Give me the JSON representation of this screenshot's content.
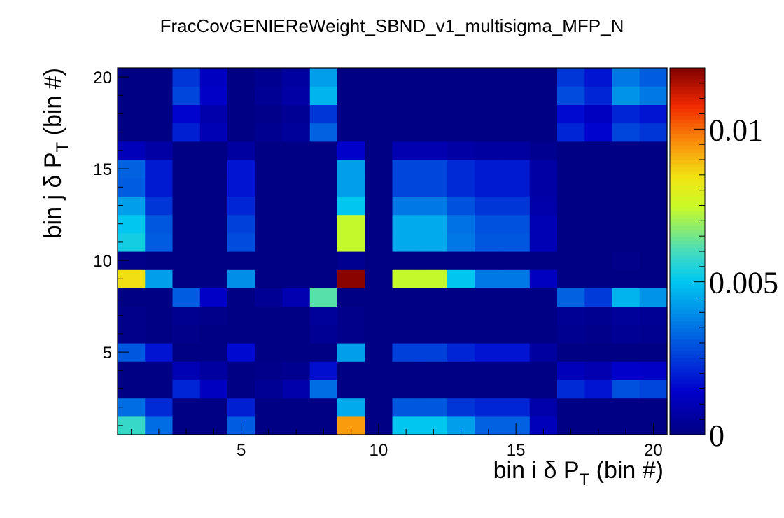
{
  "chart_data": {
    "type": "heatmap",
    "title": "FracCovGENIEReWeight_SBND_v1_multisigma_MFP_N",
    "xlabel": {
      "main": "bin i  δ P",
      "sub": "T",
      "tail": " (bin #)"
    },
    "ylabel": {
      "main": "bin j  δ P",
      "sub": "T",
      "tail": " (bin #)"
    },
    "x_range": [
      0.5,
      20.5
    ],
    "y_range": [
      0.5,
      20.5
    ],
    "x_ticks": [
      5,
      10,
      15,
      20
    ],
    "y_ticks": [
      5,
      10,
      15,
      20
    ],
    "x_tick_labels": [
      "5",
      "10",
      "15",
      "20"
    ],
    "y_tick_labels": [
      "5",
      "10",
      "15",
      "20"
    ],
    "z_range": [
      0,
      0.012
    ],
    "z_ticks": [
      0,
      0.005,
      0.01
    ],
    "z_tick_labels": [
      "0",
      "0.005",
      "0.01"
    ],
    "colormap": "jet",
    "values": [
      [
        0.0058,
        0.0034,
        0.0001,
        0.0001,
        0.0031,
        0.0001,
        0.0001,
        0.0001,
        0.0094,
        0.0001,
        0.005,
        0.005,
        0.0043,
        0.0032,
        0.0032,
        0.0011,
        0.0001,
        0.0001,
        0.0001,
        0.0001
      ],
      [
        0.0034,
        0.0022,
        0.0001,
        0.0001,
        0.002,
        0.0001,
        0.0001,
        0.0001,
        0.0045,
        0.0001,
        0.003,
        0.003,
        0.0024,
        0.0021,
        0.0021,
        0.0008,
        0.0001,
        0.0001,
        0.0001,
        0.0001
      ],
      [
        0.0001,
        0.0001,
        0.0021,
        0.0012,
        0.0001,
        0.0004,
        0.0008,
        0.0034,
        0.0001,
        0.0001,
        0.0001,
        0.0001,
        0.0001,
        0.0001,
        0.0001,
        0.0001,
        0.0022,
        0.0018,
        0.0029,
        0.0027
      ],
      [
        0.0001,
        0.0001,
        0.001,
        0.0006,
        0.0001,
        0.0002,
        0.0003,
        0.0017,
        0.0001,
        0.0001,
        0.0001,
        0.0001,
        0.0001,
        0.0001,
        0.0001,
        0.0001,
        0.0011,
        0.0009,
        0.0014,
        0.0013
      ],
      [
        0.003,
        0.0018,
        0.0001,
        0.0001,
        0.0016,
        0.0001,
        0.0001,
        0.0001,
        0.0043,
        0.0001,
        0.0026,
        0.0026,
        0.0021,
        0.0018,
        0.0018,
        0.0006,
        0.0001,
        0.0001,
        0.0001,
        0.0001
      ],
      [
        0.0002,
        0.0001,
        0.0002,
        0.0001,
        0.0001,
        0.0001,
        0.0001,
        0.0004,
        0.0002,
        0.0001,
        0.0001,
        0.0001,
        0.0001,
        0.0001,
        0.0001,
        0.0001,
        0.0003,
        0.0002,
        0.0004,
        0.0003
      ],
      [
        0.0002,
        0.0001,
        0.0003,
        0.0002,
        0.0001,
        0.0001,
        0.0001,
        0.0005,
        0.0002,
        0.0001,
        0.0001,
        0.0001,
        0.0001,
        0.0001,
        0.0001,
        0.0001,
        0.0004,
        0.0003,
        0.0005,
        0.0004
      ],
      [
        0.0001,
        0.0001,
        0.0031,
        0.0013,
        0.0001,
        0.0004,
        0.0009,
        0.0062,
        0.0001,
        0.0001,
        0.0001,
        0.0001,
        0.0001,
        0.0001,
        0.0001,
        0.0001,
        0.0032,
        0.0025,
        0.0047,
        0.0041
      ],
      [
        0.0085,
        0.0043,
        0.0001,
        0.0001,
        0.004,
        0.0001,
        0.0001,
        0.0001,
        0.0119,
        0.0001,
        0.0074,
        0.0074,
        0.005,
        0.0036,
        0.0036,
        0.0012,
        0.0001,
        0.0001,
        0.0001,
        0.0001
      ],
      [
        0.0002,
        0.0001,
        0.0001,
        0.0001,
        0.0001,
        0.0001,
        0.0001,
        0.0001,
        0.0003,
        0.0001,
        0.0001,
        0.0001,
        0.0001,
        0.0001,
        0.0001,
        0.0001,
        0.0001,
        0.0001,
        0.0002,
        0.0001
      ],
      [
        0.0053,
        0.0031,
        0.0001,
        0.0001,
        0.0028,
        0.0001,
        0.0001,
        0.0001,
        0.0074,
        0.0001,
        0.0045,
        0.0045,
        0.0036,
        0.003,
        0.003,
        0.001,
        0.0001,
        0.0001,
        0.0001,
        0.0001
      ],
      [
        0.005,
        0.003,
        0.0001,
        0.0001,
        0.0026,
        0.0001,
        0.0001,
        0.0001,
        0.0074,
        0.0001,
        0.0045,
        0.0045,
        0.0035,
        0.0029,
        0.0029,
        0.001,
        0.0001,
        0.0001,
        0.0001,
        0.0001
      ],
      [
        0.0043,
        0.0024,
        0.0001,
        0.0001,
        0.0021,
        0.0001,
        0.0001,
        0.0001,
        0.005,
        0.0001,
        0.0036,
        0.0036,
        0.0029,
        0.0024,
        0.0024,
        0.0008,
        0.0001,
        0.0001,
        0.0001,
        0.0001
      ],
      [
        0.0031,
        0.0019,
        0.0001,
        0.0001,
        0.0018,
        0.0001,
        0.0001,
        0.0001,
        0.0043,
        0.0001,
        0.0027,
        0.0027,
        0.0022,
        0.0019,
        0.0019,
        0.0007,
        0.0001,
        0.0001,
        0.0001,
        0.0001
      ],
      [
        0.0032,
        0.0019,
        0.0001,
        0.0001,
        0.0018,
        0.0001,
        0.0001,
        0.0001,
        0.0043,
        0.0001,
        0.0027,
        0.0027,
        0.0022,
        0.0019,
        0.0019,
        0.0007,
        0.0001,
        0.0001,
        0.0001,
        0.0001
      ],
      [
        0.0011,
        0.0007,
        0.0001,
        0.0001,
        0.0006,
        0.0001,
        0.0001,
        0.0001,
        0.0014,
        0.0001,
        0.0009,
        0.0009,
        0.0007,
        0.0006,
        0.0006,
        0.0003,
        0.0001,
        0.0001,
        0.0001,
        0.0001
      ],
      [
        0.0001,
        0.0001,
        0.002,
        0.001,
        0.0001,
        0.0003,
        0.0005,
        0.0032,
        0.0001,
        0.0001,
        0.0001,
        0.0001,
        0.0001,
        0.0001,
        0.0001,
        0.0001,
        0.0021,
        0.0015,
        0.0027,
        0.0024
      ],
      [
        0.0001,
        0.0001,
        0.0015,
        0.0008,
        0.0001,
        0.0002,
        0.0004,
        0.0024,
        0.0001,
        0.0001,
        0.0001,
        0.0001,
        0.0001,
        0.0001,
        0.0001,
        0.0001,
        0.0016,
        0.0012,
        0.0021,
        0.0018
      ],
      [
        0.0001,
        0.0001,
        0.0027,
        0.0013,
        0.0001,
        0.0004,
        0.0007,
        0.0047,
        0.0001,
        0.0001,
        0.0001,
        0.0001,
        0.0001,
        0.0001,
        0.0001,
        0.0001,
        0.0028,
        0.0021,
        0.0041,
        0.0036
      ],
      [
        0.0001,
        0.0001,
        0.0024,
        0.0012,
        0.0001,
        0.0003,
        0.0006,
        0.0043,
        0.0001,
        0.0001,
        0.0001,
        0.0001,
        0.0001,
        0.0001,
        0.0001,
        0.0001,
        0.0024,
        0.0018,
        0.0036,
        0.0031
      ]
    ]
  }
}
